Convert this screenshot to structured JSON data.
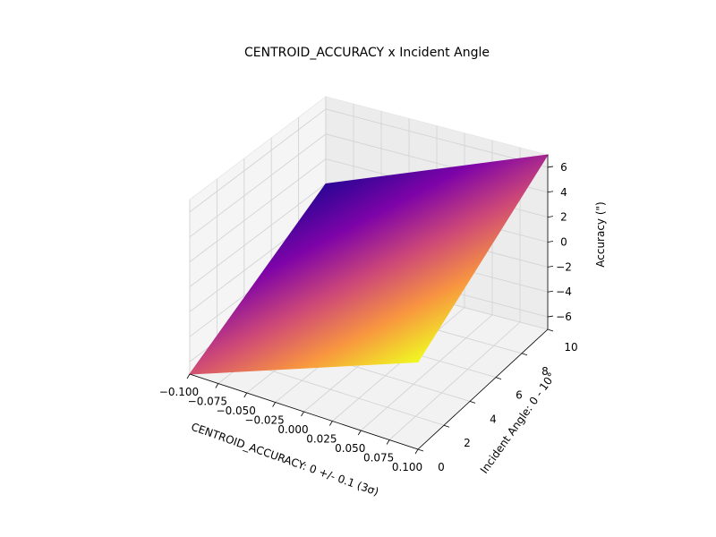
{
  "chart_data": {
    "type": "surface3d",
    "title": "CENTROID_ACCURACY x Incident Angle",
    "xlabel": "CENTROID_ACCURACY: 0 +/- 0.1 (3σ)",
    "ylabel": "Incident Angle: 0 - 10°",
    "zlabel": "Accuracy (\")",
    "xlim": [
      -0.1,
      0.1
    ],
    "ylim": [
      0,
      10
    ],
    "zlim": [
      -7,
      7
    ],
    "x_ticks": [
      -0.1,
      -0.075,
      -0.05,
      -0.025,
      0.0,
      0.025,
      0.05,
      0.075,
      0.1
    ],
    "x_tick_labels": [
      "−0.100",
      "−0.075",
      "−0.050",
      "−0.025",
      "0.000",
      "0.025",
      "0.050",
      "0.075",
      "0.100"
    ],
    "y_ticks": [
      0,
      2,
      4,
      6,
      8,
      10
    ],
    "y_tick_labels": [
      "0",
      "2",
      "4",
      "6",
      "8",
      "10"
    ],
    "z_ticks": [
      -6,
      -4,
      -2,
      0,
      2,
      4,
      6
    ],
    "z_tick_labels": [
      "−6",
      "−4",
      "−2",
      "0",
      "2",
      "4",
      "6"
    ],
    "surface": {
      "x": [
        -0.1,
        0.1
      ],
      "y": [
        0,
        10
      ],
      "z": [
        [
          -7.0,
          0.0
        ],
        [
          0.0,
          7.0
        ]
      ],
      "colormap": "plasma"
    },
    "grid": true,
    "pane_color": "#f2f2f2"
  }
}
